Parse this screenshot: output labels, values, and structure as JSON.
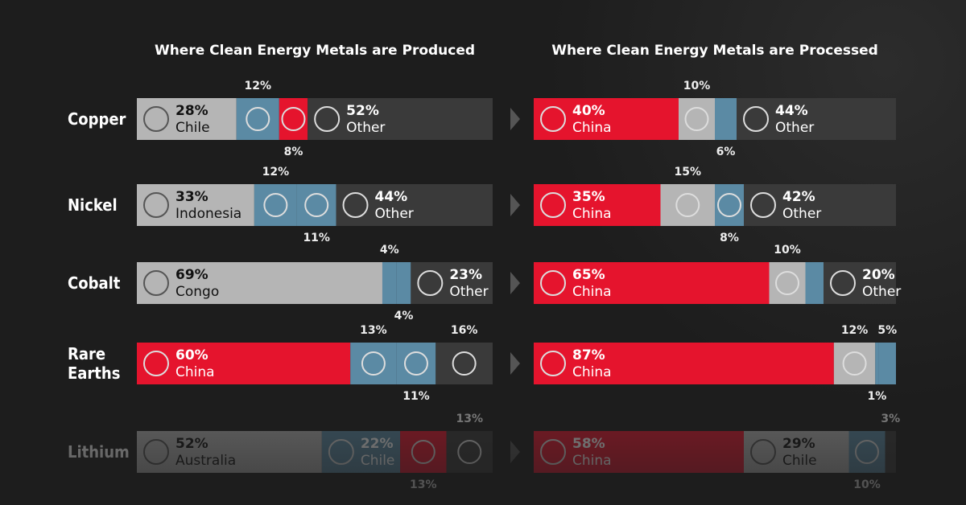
{
  "chart_data": [
    {
      "type": "bar",
      "orientation": "horizontal",
      "stacked": true,
      "title": "Where Clean Energy Metals are Produced",
      "categories": [
        "Copper",
        "Nickel",
        "Cobalt",
        "Rare Earths",
        "Lithium"
      ],
      "rows": [
        {
          "names": [
            "Chile",
            null,
            null,
            "Other"
          ],
          "values": [
            28,
            12,
            8,
            52
          ],
          "value_labels": [
            "28%",
            "12%",
            "8%",
            "52%"
          ],
          "colors": [
            "#b5b5b5",
            "#5b8aa4",
            "#e5142d",
            "#3a3a3a"
          ]
        },
        {
          "names": [
            "Indonesia",
            null,
            null,
            "Other"
          ],
          "values": [
            33,
            12,
            11,
            44
          ],
          "value_labels": [
            "33%",
            "12%",
            "11%",
            "44%"
          ],
          "colors": [
            "#b5b5b5",
            "#5b8aa4",
            "#5b8aa4",
            "#3a3a3a"
          ]
        },
        {
          "names": [
            "Congo",
            null,
            null,
            "Other"
          ],
          "values": [
            69,
            4,
            4,
            23
          ],
          "value_labels": [
            "69%",
            "4%",
            "4%",
            "23%"
          ],
          "colors": [
            "#b5b5b5",
            "#5b8aa4",
            "#5b8aa4",
            "#3a3a3a"
          ]
        },
        {
          "names": [
            "China",
            null,
            null,
            null
          ],
          "values": [
            60,
            13,
            11,
            16
          ],
          "value_labels": [
            "60%",
            "13%",
            "11%",
            "16%"
          ],
          "colors": [
            "#e5142d",
            "#5b8aa4",
            "#5b8aa4",
            "#3a3a3a"
          ]
        },
        {
          "names": [
            "Australia",
            "Chile",
            null,
            null
          ],
          "values": [
            52,
            22,
            13,
            13
          ],
          "value_labels": [
            "52%",
            "22%",
            "13%",
            "13%"
          ],
          "colors": [
            "#b5b5b5",
            "#5b8aa4",
            "#e5142d",
            "#3a3a3a"
          ]
        }
      ]
    },
    {
      "type": "bar",
      "orientation": "horizontal",
      "stacked": true,
      "title": "Where Clean Energy Metals are Processed",
      "rows": [
        {
          "names": [
            "China",
            null,
            null,
            "Other"
          ],
          "values": [
            40,
            10,
            6,
            44
          ],
          "value_labels": [
            "40%",
            "10%",
            "6%",
            "44%"
          ],
          "colors": [
            "#e5142d",
            "#b5b5b5",
            "#5b8aa4",
            "#3a3a3a"
          ]
        },
        {
          "names": [
            "China",
            null,
            null,
            "Other"
          ],
          "values": [
            35,
            15,
            8,
            42
          ],
          "value_labels": [
            "35%",
            "15%",
            "8%",
            "42%"
          ],
          "colors": [
            "#e5142d",
            "#b5b5b5",
            "#5b8aa4",
            "#3a3a3a"
          ]
        },
        {
          "names": [
            "China",
            null,
            null,
            "Other"
          ],
          "values": [
            65,
            10,
            5,
            20
          ],
          "value_labels": [
            "65%",
            "10%",
            null,
            "20%"
          ],
          "colors": [
            "#e5142d",
            "#b5b5b5",
            "#5b8aa4",
            "#3a3a3a"
          ]
        },
        {
          "names": [
            "China",
            null,
            null,
            null
          ],
          "values": [
            87,
            12,
            1,
            5
          ],
          "value_labels": [
            "87%",
            "12%",
            "1%",
            "5%"
          ],
          "colors": [
            "#e5142d",
            "#b5b5b5",
            "#5b8aa4",
            "#5b8aa4"
          ]
        },
        {
          "names": [
            "China",
            "Chile",
            null,
            null
          ],
          "values": [
            58,
            29,
            10,
            3
          ],
          "value_labels": [
            "58%",
            "29%",
            "10%",
            "3%"
          ],
          "colors": [
            "#e5142d",
            "#b5b5b5",
            "#5b8aa4",
            "#3a3a3a"
          ]
        }
      ]
    }
  ]
}
